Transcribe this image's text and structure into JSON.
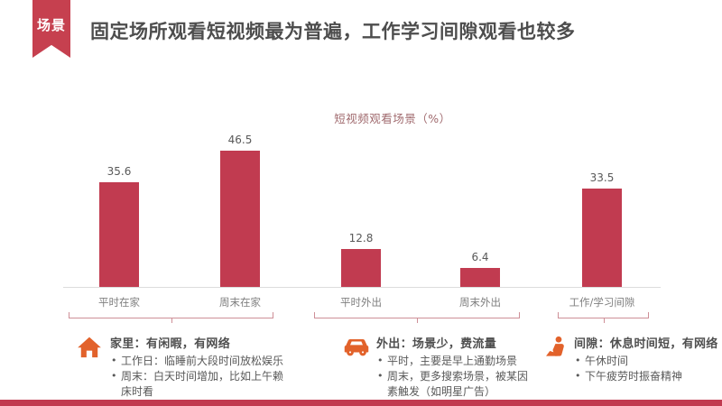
{
  "ribbon": {
    "label": "场景"
  },
  "header": {
    "title": "固定场所观看短视频最为普遍，工作学习间隙观看也较多"
  },
  "chart_data": {
    "type": "bar",
    "title": "短视频观看场景（%）",
    "categories": [
      "平时在家",
      "周末在家",
      "平时外出",
      "周末外出",
      "工作/学习间隙"
    ],
    "values": [
      35.6,
      46.5,
      12.8,
      6.4,
      33.5
    ],
    "xlabel": "",
    "ylabel": "",
    "ylim": [
      0,
      50
    ],
    "grid": false,
    "legend": "none",
    "value_labels_shown": true,
    "bar_color": "#C13B50"
  },
  "annotations": [
    {
      "icon": "house-icon",
      "heading": "家里：有闲暇，有网络",
      "bullets": [
        "工作日：临睡前大段时间放松娱乐",
        "周末：白天时间增加，比如上午赖床时看"
      ]
    },
    {
      "icon": "car-icon",
      "heading": "外出：场景少，费流量",
      "bullets": [
        "平时，主要是早上通勤场景",
        "周末，更多搜索场景，被某因素触发（如明星广告）"
      ]
    },
    {
      "icon": "worker-icon",
      "heading": "间隙：休息时间短，有网络",
      "bullets": [
        "午休时间",
        "下午疲劳时振奋精神"
      ]
    }
  ],
  "colors": {
    "accent_red": "#C13B50",
    "ribbon_red": "#C6404F",
    "icon_orange": "#E2622B",
    "brace_pink": "#CE8F97",
    "headline_gray": "#4D4D4D",
    "chart_title_red": "#A06A6E",
    "value_label_gray": "#595959",
    "category_gray": "#7F7F7F",
    "axis_line_gray": "#DCDCDC"
  }
}
